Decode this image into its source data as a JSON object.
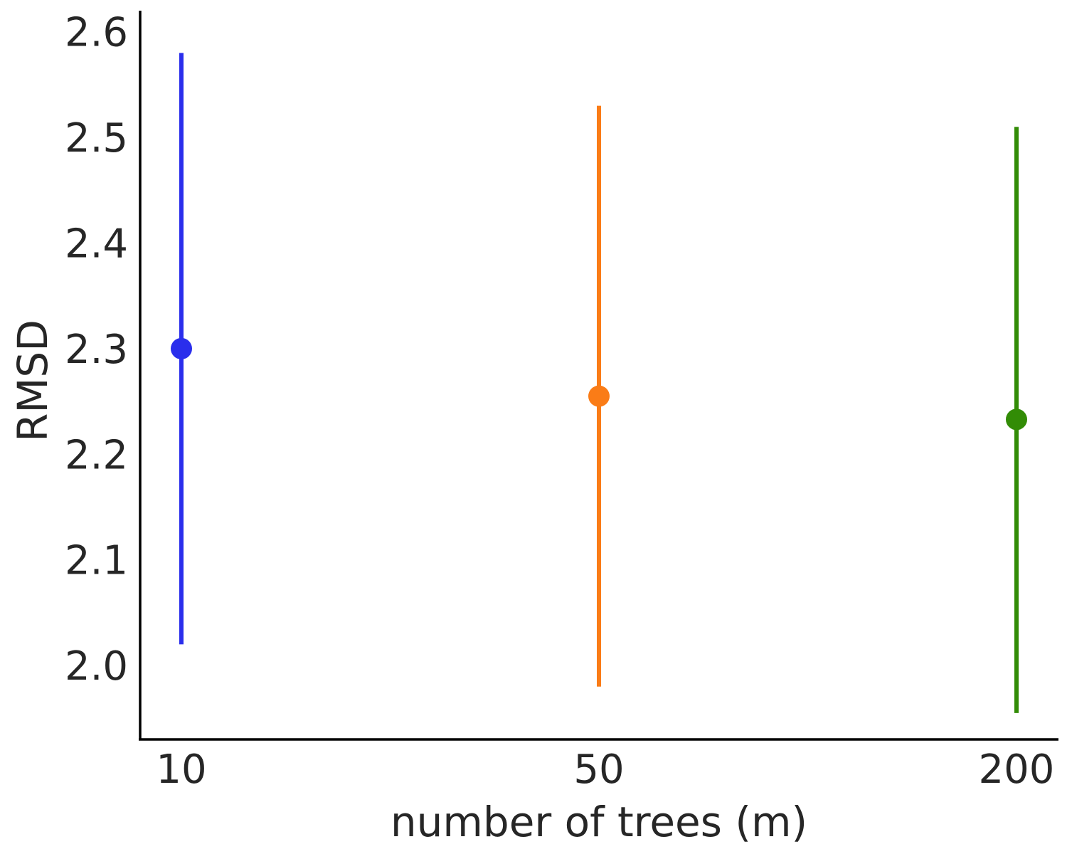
{
  "chart_data": {
    "type": "scatter",
    "title": "",
    "xlabel": "number of trees (m)",
    "ylabel": "RMSD",
    "categories": [
      "10",
      "50",
      "200"
    ],
    "points": [
      {
        "x": "10",
        "y": 2.3,
        "err_low": 2.02,
        "err_high": 2.58,
        "color": "#2a2eec"
      },
      {
        "x": "50",
        "y": 2.255,
        "err_low": 1.98,
        "err_high": 2.53,
        "color": "#fa7c17"
      },
      {
        "x": "200",
        "y": 2.233,
        "err_low": 1.955,
        "err_high": 2.51,
        "color": "#328c06"
      }
    ],
    "yticks": [
      "2.0",
      "2.1",
      "2.2",
      "2.3",
      "2.4",
      "2.5",
      "2.6"
    ],
    "ylim": [
      1.93,
      2.62
    ],
    "grid": false,
    "legend": "none"
  }
}
